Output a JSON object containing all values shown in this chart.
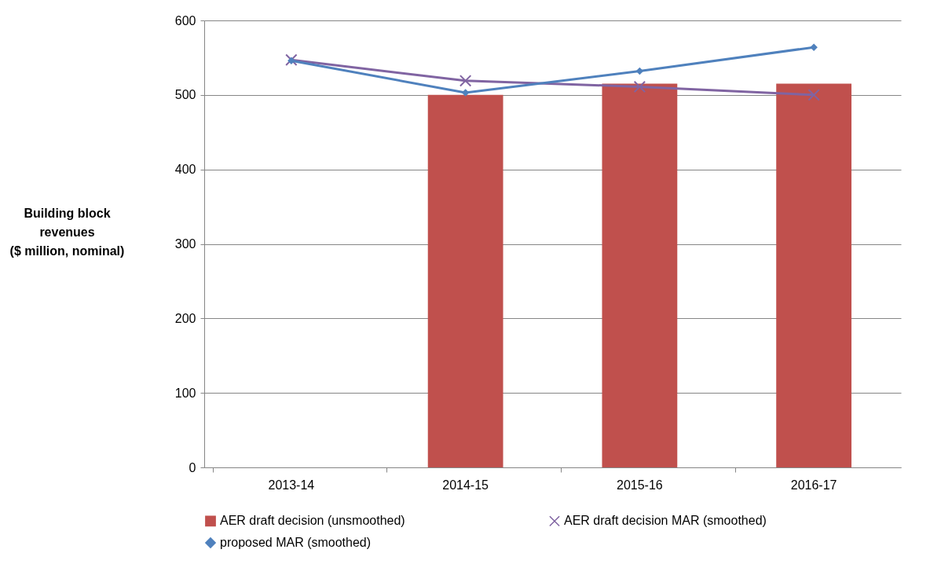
{
  "chart_data": {
    "type": "bar",
    "ylabel": "Building block\nrevenues\n($ million, nominal)",
    "categories": [
      "2013-14",
      "2014-15",
      "2015-16",
      "2016-17"
    ],
    "series": [
      {
        "name": "AER draft decision (unsmoothed)",
        "color": "#c0504d",
        "values": [
          null,
          500,
          515,
          515
        ]
      },
      {
        "name": "AER draft decision MAR (smoothed)",
        "type": "line",
        "color": "#8064a2",
        "marker": "cross",
        "values": [
          547,
          519,
          511,
          500
        ]
      },
      {
        "name": "proposed MAR (smoothed)",
        "type": "line",
        "color": "#4f81bd",
        "marker": "diamond",
        "values": [
          546,
          503,
          532,
          564
        ]
      }
    ],
    "ylim": [
      0,
      600
    ],
    "yticks": [
      0,
      100,
      200,
      300,
      400,
      500,
      600
    ],
    "grid": "y",
    "legend": "bottom"
  }
}
